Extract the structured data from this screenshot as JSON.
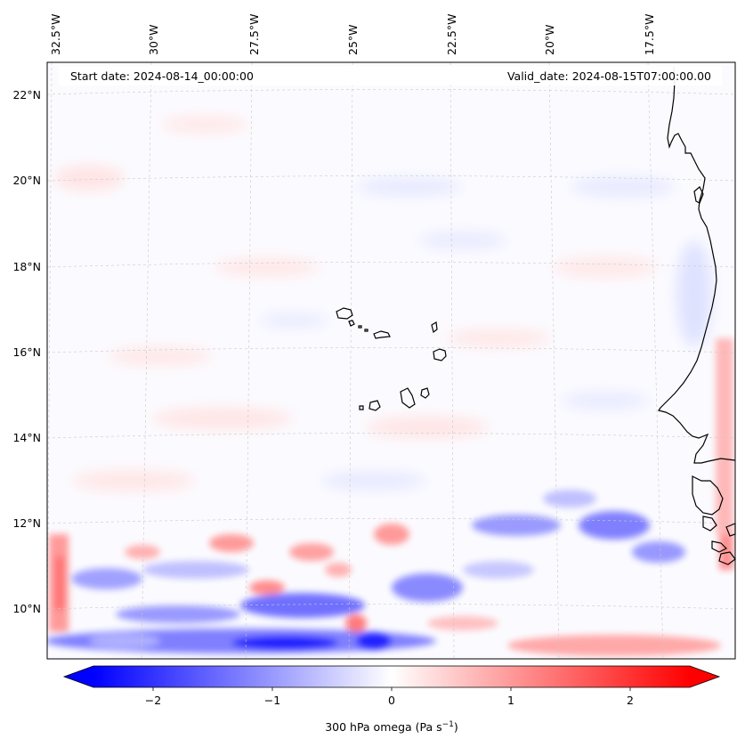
{
  "header": {
    "start_date": "Start date: 2024-08-14_00:00:00",
    "valid_date": "Valid_date: 2024-08-15T07:00:00.00"
  },
  "axes": {
    "lon_labels": [
      "32.5°W",
      "30°W",
      "27.5°W",
      "25°W",
      "22.5°W",
      "20°W",
      "17.5°W"
    ],
    "lat_labels": [
      "22°N",
      "20°N",
      "18°N",
      "16°N",
      "14°N",
      "12°N",
      "10°N"
    ]
  },
  "colorbar": {
    "label": "300 hPa omega (Pa s",
    "label_sup": "−1",
    "label_end": ")",
    "ticks": [
      "−2",
      "−1",
      "0",
      "1",
      "2"
    ],
    "min": -2.6,
    "max": 2.6,
    "low_color": "#0000ff",
    "mid_color": "#ffffff",
    "high_color": "#ff0000"
  },
  "coastline_color": "#000000"
}
